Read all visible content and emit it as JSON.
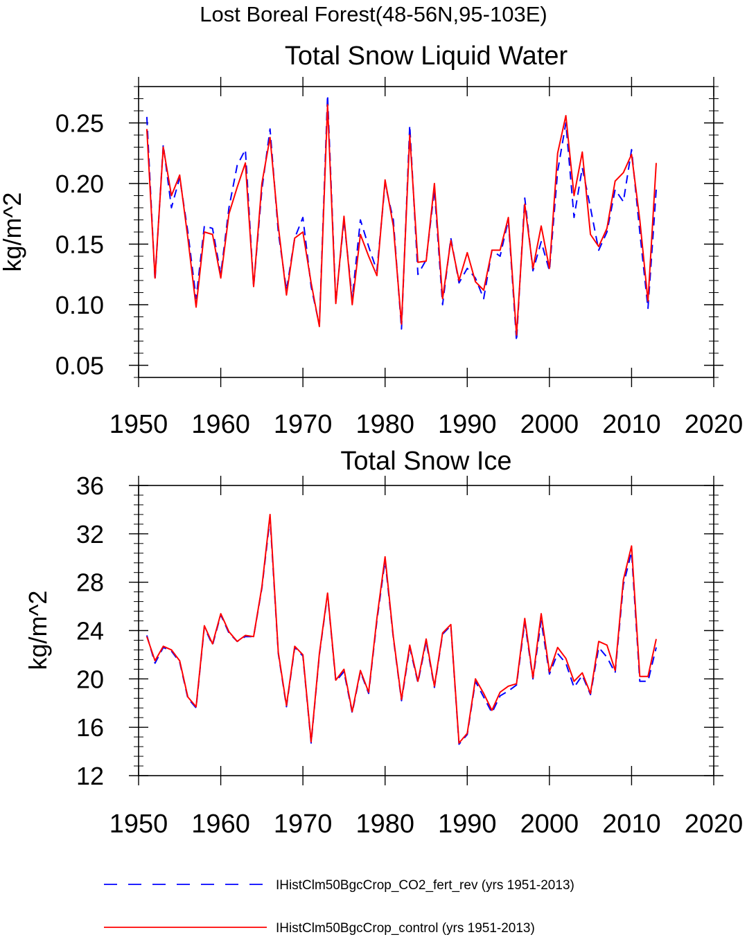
{
  "figure": {
    "title": "Lost Boreal Forest(48-56N,95-103E)"
  },
  "legend": {
    "entries": [
      {
        "label": "IHistClm50BgcCrop_CO2_fert_rev (yrs 1951-2013)",
        "color": "#0000ff",
        "style": "dashed"
      },
      {
        "label": "IHistClm50BgcCrop_control (yrs 1951-2013)",
        "color": "#ff0000",
        "style": "solid"
      }
    ]
  },
  "chart_data": [
    {
      "type": "line",
      "title": "Total Snow Liquid Water",
      "xlabel": "",
      "ylabel": "kg/m^2",
      "xlim": [
        1950,
        2020
      ],
      "ylim": [
        0.04,
        0.28
      ],
      "xticks": [
        1950,
        1960,
        1970,
        1980,
        1990,
        2000,
        2010,
        2020
      ],
      "xtick_labels": [
        "1950",
        "1960",
        "1970",
        "1980",
        "1990",
        "2000",
        "2010",
        "2020"
      ],
      "yticks": [
        0.05,
        0.1,
        0.15,
        0.2,
        0.25
      ],
      "ytick_labels": [
        "0.05",
        "0.10",
        "0.15",
        "0.20",
        "0.25"
      ],
      "grid": false,
      "x": [
        1951,
        1952,
        1953,
        1954,
        1955,
        1956,
        1957,
        1958,
        1959,
        1960,
        1961,
        1962,
        1963,
        1964,
        1965,
        1966,
        1967,
        1968,
        1969,
        1970,
        1971,
        1972,
        1973,
        1974,
        1975,
        1976,
        1977,
        1978,
        1979,
        1980,
        1981,
        1982,
        1983,
        1984,
        1985,
        1986,
        1987,
        1988,
        1989,
        1990,
        1991,
        1992,
        1993,
        1994,
        1995,
        1996,
        1997,
        1998,
        1999,
        2000,
        2001,
        2002,
        2003,
        2004,
        2005,
        2006,
        2007,
        2008,
        2009,
        2010,
        2011,
        2012,
        2013
      ],
      "series": [
        {
          "name": "IHistClm50BgcCrop_CO2_fert_rev (yrs 1951-2013)",
          "color": "#0000ff",
          "style": "dashed",
          "values": [
            0.255,
            0.12,
            0.232,
            0.18,
            0.205,
            0.16,
            0.105,
            0.165,
            0.163,
            0.125,
            0.18,
            0.215,
            0.228,
            0.115,
            0.195,
            0.245,
            0.16,
            0.112,
            0.155,
            0.172,
            0.115,
            0.083,
            0.273,
            0.102,
            0.17,
            0.105,
            0.17,
            0.148,
            0.128,
            0.2,
            0.17,
            0.08,
            0.248,
            0.125,
            0.137,
            0.195,
            0.1,
            0.155,
            0.118,
            0.13,
            0.122,
            0.105,
            0.145,
            0.14,
            0.17,
            0.07,
            0.188,
            0.128,
            0.152,
            0.128,
            0.21,
            0.25,
            0.172,
            0.213,
            0.18,
            0.145,
            0.16,
            0.195,
            0.185,
            0.228,
            0.16,
            0.097,
            0.195
          ]
        },
        {
          "name": "IHistClm50BgcCrop_control (yrs 1951-2013)",
          "color": "#ff0000",
          "style": "solid",
          "values": [
            0.245,
            0.122,
            0.23,
            0.19,
            0.207,
            0.155,
            0.098,
            0.16,
            0.158,
            0.122,
            0.175,
            0.197,
            0.217,
            0.115,
            0.2,
            0.238,
            0.165,
            0.108,
            0.155,
            0.16,
            0.118,
            0.082,
            0.265,
            0.101,
            0.173,
            0.1,
            0.158,
            0.14,
            0.124,
            0.203,
            0.165,
            0.084,
            0.24,
            0.135,
            0.136,
            0.2,
            0.105,
            0.153,
            0.12,
            0.143,
            0.119,
            0.112,
            0.145,
            0.145,
            0.172,
            0.075,
            0.183,
            0.13,
            0.165,
            0.13,
            0.225,
            0.256,
            0.19,
            0.226,
            0.158,
            0.148,
            0.163,
            0.202,
            0.209,
            0.224,
            0.17,
            0.103,
            0.217
          ]
        }
      ]
    },
    {
      "type": "line",
      "title": "Total Snow Ice",
      "xlabel": "",
      "ylabel": "kg/m^2",
      "xlim": [
        1950,
        2020
      ],
      "ylim": [
        12,
        36
      ],
      "xticks": [
        1950,
        1960,
        1970,
        1980,
        1990,
        2000,
        2010,
        2020
      ],
      "xtick_labels": [
        "1950",
        "1960",
        "1970",
        "1980",
        "1990",
        "2000",
        "2010",
        "2020"
      ],
      "yticks": [
        12,
        16,
        20,
        24,
        28,
        32,
        36
      ],
      "ytick_labels": [
        "12",
        "16",
        "20",
        "24",
        "28",
        "32",
        "36"
      ],
      "grid": false,
      "x": [
        1951,
        1952,
        1953,
        1954,
        1955,
        1956,
        1957,
        1958,
        1959,
        1960,
        1961,
        1962,
        1963,
        1964,
        1965,
        1966,
        1967,
        1968,
        1969,
        1970,
        1971,
        1972,
        1973,
        1974,
        1975,
        1976,
        1977,
        1978,
        1979,
        1980,
        1981,
        1982,
        1983,
        1984,
        1985,
        1986,
        1987,
        1988,
        1989,
        1990,
        1991,
        1992,
        1993,
        1994,
        1995,
        1996,
        1997,
        1998,
        1999,
        2000,
        2001,
        2002,
        2003,
        2004,
        2005,
        2006,
        2007,
        2008,
        2009,
        2010,
        2011,
        2012,
        2013
      ],
      "series": [
        {
          "name": "IHistClm50BgcCrop_CO2_fert_rev (yrs 1951-2013)",
          "color": "#0000ff",
          "style": "dashed",
          "values": [
            23.6,
            21.3,
            22.6,
            22.3,
            21.4,
            18.4,
            17.6,
            24.3,
            22.8,
            25.3,
            23.8,
            23.1,
            23.5,
            23.5,
            27.5,
            33.3,
            22.1,
            17.7,
            22.6,
            21.9,
            14.7,
            22.0,
            27.0,
            19.8,
            20.6,
            17.2,
            20.6,
            18.8,
            24.8,
            29.8,
            23.4,
            18.2,
            22.6,
            19.7,
            23.1,
            19.3,
            23.7,
            24.4,
            14.6,
            15.4,
            19.8,
            18.5,
            17.2,
            18.6,
            19.0,
            19.5,
            24.7,
            20.0,
            24.8,
            20.4,
            22.1,
            21.3,
            19.3,
            20.3,
            18.7,
            22.6,
            21.8,
            20.5,
            27.8,
            30.5,
            19.8,
            19.8,
            22.6
          ]
        },
        {
          "name": "IHistClm50BgcCrop_control (yrs 1951-2013)",
          "color": "#ff0000",
          "style": "solid",
          "values": [
            23.5,
            21.5,
            22.7,
            22.4,
            21.5,
            18.5,
            17.7,
            24.4,
            22.9,
            25.4,
            23.9,
            23.1,
            23.6,
            23.5,
            27.6,
            33.6,
            22.2,
            17.8,
            22.7,
            22.0,
            14.8,
            22.1,
            27.1,
            19.9,
            20.8,
            17.3,
            20.7,
            18.9,
            25.0,
            30.1,
            23.5,
            18.3,
            22.8,
            19.8,
            23.3,
            19.4,
            23.8,
            24.5,
            14.7,
            15.5,
            20.0,
            18.8,
            17.4,
            18.9,
            19.4,
            19.6,
            25.0,
            20.1,
            25.4,
            20.6,
            22.6,
            21.7,
            19.8,
            20.5,
            18.8,
            23.1,
            22.8,
            20.7,
            28.2,
            31.0,
            20.2,
            20.2,
            23.3
          ]
        }
      ]
    }
  ]
}
